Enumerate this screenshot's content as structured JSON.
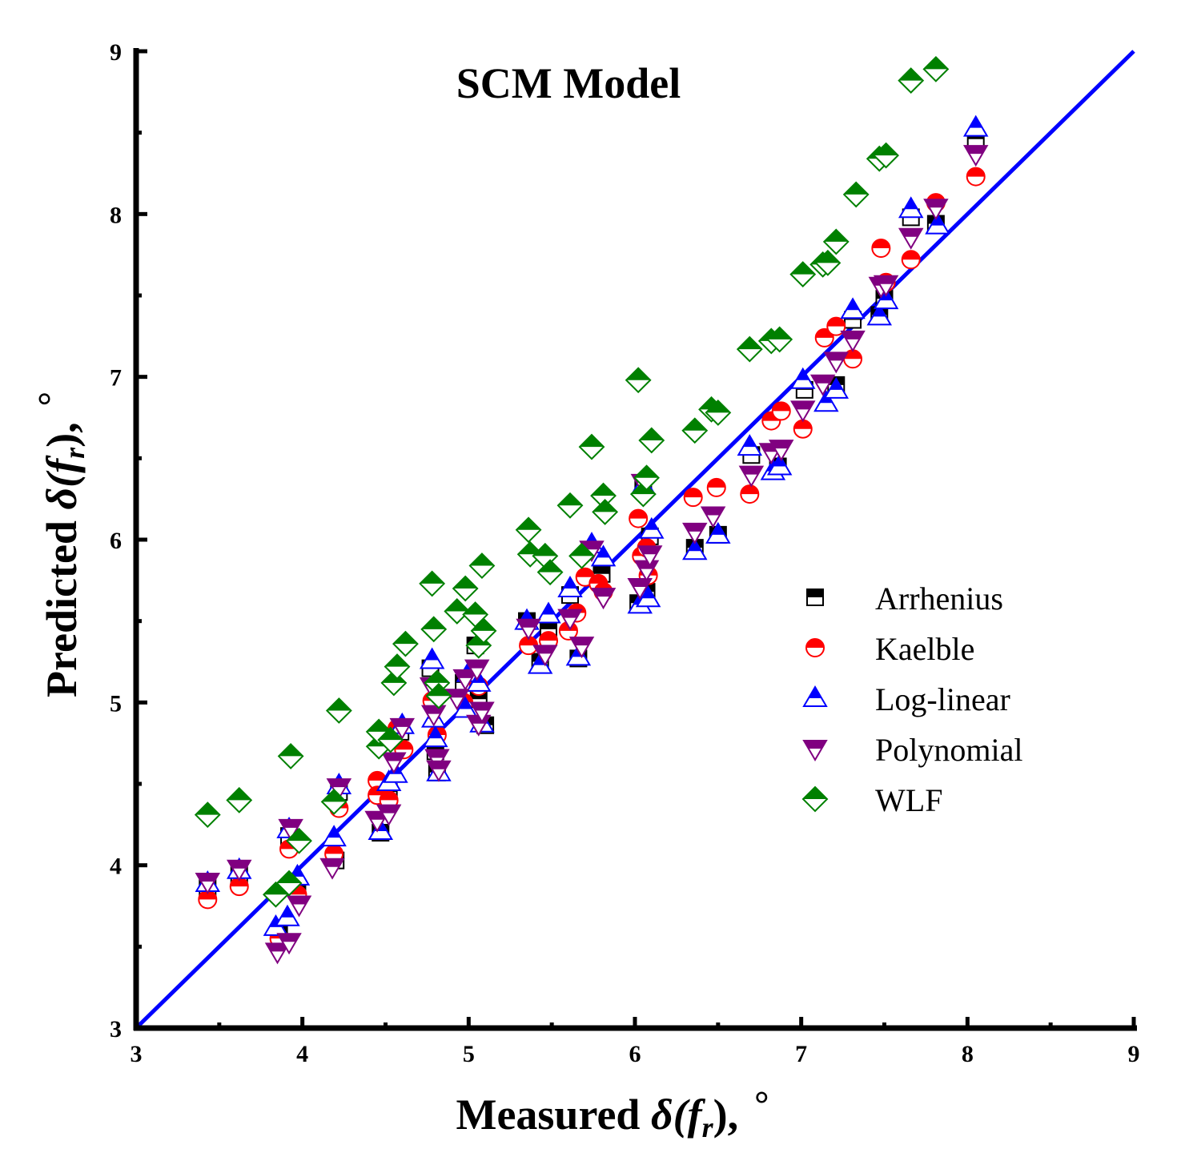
{
  "chart_data": {
    "type": "scatter",
    "title": "SCM Model",
    "xlabel": {
      "prefix": "Measured ",
      "symbol": "δ(f",
      "sub": "r",
      "suffix": "),",
      "unit": "°"
    },
    "ylabel": {
      "prefix": "Predicted ",
      "symbol": "δ(f",
      "sub": "r",
      "suffix": "),",
      "unit": "°"
    },
    "xlim": [
      3,
      9
    ],
    "ylim": [
      3,
      9
    ],
    "xticks": [
      "3",
      "4",
      "5",
      "6",
      "7",
      "8",
      "9"
    ],
    "yticks": [
      "3",
      "4",
      "5",
      "6",
      "7",
      "8",
      "9"
    ],
    "legend_position": "right-middle",
    "reference_line": {
      "name": "1:1 line",
      "x": [
        3,
        9
      ],
      "y": [
        3,
        9
      ],
      "color": "#0000ff"
    },
    "series": [
      {
        "name": "Arrhenius",
        "marker": "square",
        "color": "#000000",
        "points": [
          [
            3.43,
            3.86
          ],
          [
            3.62,
            3.94
          ],
          [
            3.86,
            3.58
          ],
          [
            3.92,
            4.18
          ],
          [
            3.97,
            3.85
          ],
          [
            4.2,
            4.03
          ],
          [
            4.22,
            4.45
          ],
          [
            4.47,
            4.2
          ],
          [
            4.52,
            4.45
          ],
          [
            4.59,
            4.82
          ],
          [
            4.77,
            5.21
          ],
          [
            4.8,
            4.7
          ],
          [
            4.81,
            4.57
          ],
          [
            4.97,
            5.12
          ],
          [
            5.04,
            5.35
          ],
          [
            5.06,
            5.02
          ],
          [
            5.1,
            4.86
          ],
          [
            5.35,
            5.5
          ],
          [
            5.43,
            5.25
          ],
          [
            5.48,
            5.45
          ],
          [
            5.61,
            5.66
          ],
          [
            5.66,
            5.27
          ],
          [
            5.8,
            5.79
          ],
          [
            6.02,
            5.61
          ],
          [
            6.05,
            6.31
          ],
          [
            6.07,
            5.68
          ],
          [
            6.09,
            6.02
          ],
          [
            6.36,
            5.95
          ],
          [
            6.5,
            6.03
          ],
          [
            6.7,
            6.52
          ],
          [
            6.86,
            6.45
          ],
          [
            7.02,
            6.92
          ],
          [
            7.21,
            6.95
          ],
          [
            7.31,
            7.35
          ],
          [
            7.47,
            7.38
          ],
          [
            7.5,
            7.48
          ],
          [
            7.66,
            7.98
          ],
          [
            7.81,
            7.94
          ],
          [
            8.05,
            8.46
          ]
        ]
      },
      {
        "name": "Kaelble",
        "marker": "circle",
        "color": "#ff0000",
        "points": [
          [
            3.43,
            3.79
          ],
          [
            3.62,
            3.87
          ],
          [
            3.86,
            3.55
          ],
          [
            3.92,
            4.1
          ],
          [
            3.97,
            3.82
          ],
          [
            4.19,
            4.07
          ],
          [
            4.22,
            4.35
          ],
          [
            4.45,
            4.52
          ],
          [
            4.45,
            4.43
          ],
          [
            4.52,
            4.4
          ],
          [
            4.57,
            4.84
          ],
          [
            4.61,
            4.71
          ],
          [
            4.78,
            5.01
          ],
          [
            4.81,
            4.8
          ],
          [
            4.97,
            5.0
          ],
          [
            5.06,
            5.1
          ],
          [
            5.36,
            5.35
          ],
          [
            5.48,
            5.38
          ],
          [
            5.6,
            5.44
          ],
          [
            5.65,
            5.55
          ],
          [
            5.7,
            5.77
          ],
          [
            5.78,
            5.73
          ],
          [
            5.81,
            5.68
          ],
          [
            6.02,
            6.13
          ],
          [
            6.04,
            5.9
          ],
          [
            6.07,
            5.95
          ],
          [
            6.08,
            5.78
          ],
          [
            6.35,
            6.26
          ],
          [
            6.49,
            6.32
          ],
          [
            6.69,
            6.28
          ],
          [
            6.82,
            6.73
          ],
          [
            6.88,
            6.79
          ],
          [
            7.01,
            6.68
          ],
          [
            7.14,
            7.24
          ],
          [
            7.21,
            7.31
          ],
          [
            7.31,
            7.11
          ],
          [
            7.48,
            7.79
          ],
          [
            7.51,
            7.58
          ],
          [
            7.66,
            7.72
          ],
          [
            7.81,
            8.07
          ],
          [
            8.05,
            8.23
          ]
        ]
      },
      {
        "name": "Log-linear",
        "marker": "triangle-up",
        "color": "#0000ff",
        "points": [
          [
            3.43,
            3.89
          ],
          [
            3.62,
            3.97
          ],
          [
            3.84,
            3.62
          ],
          [
            3.91,
            3.68
          ],
          [
            3.92,
            4.22
          ],
          [
            3.97,
            3.93
          ],
          [
            4.19,
            4.17
          ],
          [
            4.22,
            4.49
          ],
          [
            4.47,
            4.21
          ],
          [
            4.52,
            4.51
          ],
          [
            4.56,
            4.56
          ],
          [
            4.6,
            4.86
          ],
          [
            4.78,
            5.26
          ],
          [
            4.79,
            4.9
          ],
          [
            4.8,
            4.78
          ],
          [
            4.82,
            4.57
          ],
          [
            4.98,
            4.96
          ],
          [
            5.0,
            5.18
          ],
          [
            5.06,
            5.12
          ],
          [
            5.08,
            4.87
          ],
          [
            5.35,
            5.5
          ],
          [
            5.43,
            5.23
          ],
          [
            5.48,
            5.54
          ],
          [
            5.61,
            5.7
          ],
          [
            5.66,
            5.28
          ],
          [
            5.74,
            5.97
          ],
          [
            5.81,
            5.89
          ],
          [
            6.03,
            5.6
          ],
          [
            6.05,
            6.33
          ],
          [
            6.08,
            5.64
          ],
          [
            6.1,
            6.06
          ],
          [
            6.36,
            5.93
          ],
          [
            6.5,
            6.03
          ],
          [
            6.69,
            6.57
          ],
          [
            6.83,
            6.42
          ],
          [
            6.87,
            6.45
          ],
          [
            7.01,
            6.98
          ],
          [
            7.15,
            6.84
          ],
          [
            7.21,
            6.92
          ],
          [
            7.31,
            7.41
          ],
          [
            7.47,
            7.37
          ],
          [
            7.51,
            7.47
          ],
          [
            7.66,
            8.03
          ],
          [
            7.82,
            7.93
          ],
          [
            8.05,
            8.53
          ]
        ]
      },
      {
        "name": "Polynomial",
        "marker": "triangle-down",
        "color": "#800080",
        "points": [
          [
            3.43,
            3.9
          ],
          [
            3.62,
            3.98
          ],
          [
            3.85,
            3.47
          ],
          [
            3.92,
            3.53
          ],
          [
            3.93,
            4.23
          ],
          [
            3.98,
            3.76
          ],
          [
            4.18,
            3.99
          ],
          [
            4.22,
            4.48
          ],
          [
            4.45,
            4.28
          ],
          [
            4.52,
            4.32
          ],
          [
            4.55,
            4.64
          ],
          [
            4.6,
            4.85
          ],
          [
            4.78,
            5.1
          ],
          [
            4.79,
            4.93
          ],
          [
            4.81,
            4.66
          ],
          [
            4.82,
            4.59
          ],
          [
            4.93,
            5.03
          ],
          [
            4.98,
            5.15
          ],
          [
            5.05,
            5.21
          ],
          [
            5.06,
            4.87
          ],
          [
            5.08,
            4.95
          ],
          [
            5.36,
            5.46
          ],
          [
            5.46,
            5.3
          ],
          [
            5.61,
            5.52
          ],
          [
            5.68,
            5.35
          ],
          [
            5.74,
            5.94
          ],
          [
            5.81,
            5.65
          ],
          [
            6.03,
            5.71
          ],
          [
            6.05,
            6.35
          ],
          [
            6.07,
            5.82
          ],
          [
            6.09,
            5.91
          ],
          [
            6.36,
            6.05
          ],
          [
            6.47,
            6.15
          ],
          [
            6.7,
            6.4
          ],
          [
            6.82,
            6.54
          ],
          [
            6.88,
            6.56
          ],
          [
            7.01,
            6.8
          ],
          [
            7.13,
            6.96
          ],
          [
            7.21,
            7.1
          ],
          [
            7.31,
            7.23
          ],
          [
            7.48,
            7.56
          ],
          [
            7.51,
            7.57
          ],
          [
            7.66,
            7.86
          ],
          [
            7.81,
            8.04
          ],
          [
            8.05,
            8.37
          ]
        ]
      },
      {
        "name": "WLF",
        "marker": "diamond",
        "color": "#008000",
        "points": [
          [
            3.43,
            4.31
          ],
          [
            3.62,
            4.4
          ],
          [
            3.84,
            3.82
          ],
          [
            3.92,
            3.89
          ],
          [
            3.93,
            4.67
          ],
          [
            3.98,
            4.15
          ],
          [
            4.19,
            4.39
          ],
          [
            4.22,
            4.95
          ],
          [
            4.46,
            4.73
          ],
          [
            4.46,
            4.82
          ],
          [
            4.53,
            4.77
          ],
          [
            4.55,
            5.12
          ],
          [
            4.57,
            5.22
          ],
          [
            4.62,
            5.36
          ],
          [
            4.78,
            5.73
          ],
          [
            4.79,
            5.45
          ],
          [
            4.81,
            5.12
          ],
          [
            4.82,
            5.04
          ],
          [
            4.93,
            5.56
          ],
          [
            4.98,
            5.7
          ],
          [
            5.04,
            5.54
          ],
          [
            5.06,
            5.35
          ],
          [
            5.08,
            5.84
          ],
          [
            5.09,
            5.44
          ],
          [
            5.36,
            6.06
          ],
          [
            5.37,
            5.91
          ],
          [
            5.46,
            5.9
          ],
          [
            5.49,
            5.8
          ],
          [
            5.61,
            6.21
          ],
          [
            5.68,
            5.9
          ],
          [
            5.74,
            6.57
          ],
          [
            5.81,
            6.27
          ],
          [
            5.82,
            6.17
          ],
          [
            6.02,
            6.98
          ],
          [
            6.05,
            6.28
          ],
          [
            6.07,
            6.38
          ],
          [
            6.1,
            6.61
          ],
          [
            6.36,
            6.67
          ],
          [
            6.46,
            6.8
          ],
          [
            6.5,
            6.78
          ],
          [
            6.69,
            7.17
          ],
          [
            6.82,
            7.22
          ],
          [
            6.87,
            7.23
          ],
          [
            7.01,
            7.63
          ],
          [
            7.13,
            7.69
          ],
          [
            7.16,
            7.7
          ],
          [
            7.21,
            7.83
          ],
          [
            7.33,
            8.12
          ],
          [
            7.47,
            8.34
          ],
          [
            7.51,
            8.36
          ],
          [
            7.66,
            8.82
          ],
          [
            7.81,
            8.89
          ]
        ]
      }
    ]
  }
}
